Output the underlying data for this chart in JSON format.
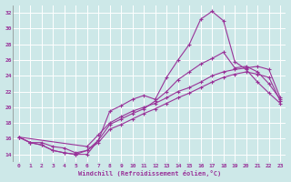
{
  "xlabel": "Windchill (Refroidissement éolien,°C)",
  "bg_color": "#cde8e8",
  "line_color": "#993399",
  "grid_color": "#b0d0d0",
  "xlim": [
    -0.5,
    23.5
  ],
  "ylim": [
    13.0,
    33.0
  ],
  "yticks": [
    14,
    16,
    18,
    20,
    22,
    24,
    26,
    28,
    30,
    32
  ],
  "xticks": [
    0,
    1,
    2,
    3,
    4,
    5,
    6,
    7,
    8,
    9,
    10,
    11,
    12,
    13,
    14,
    15,
    16,
    17,
    18,
    19,
    20,
    21,
    22,
    23
  ],
  "lines": [
    {
      "x": [
        0,
        1,
        2,
        3,
        4,
        5,
        6,
        7,
        8,
        9,
        10,
        11,
        12,
        13,
        14,
        15,
        16,
        17,
        18,
        19,
        20,
        21,
        22,
        23
      ],
      "y": [
        16.2,
        15.5,
        15.2,
        14.5,
        14.2,
        14.0,
        14.0,
        15.8,
        19.5,
        20.2,
        21.0,
        21.5,
        21.0,
        23.8,
        26.0,
        28.0,
        31.2,
        32.2,
        31.0,
        25.8,
        24.8,
        23.2,
        21.8,
        20.5
      ],
      "markers": [
        0,
        1,
        2,
        3,
        4,
        5,
        6,
        7,
        8,
        9,
        10,
        11,
        12,
        13,
        14,
        15,
        16,
        17,
        18,
        19,
        20,
        21,
        22,
        23
      ]
    },
    {
      "x": [
        0,
        1,
        2,
        3,
        4,
        5,
        6,
        7,
        8,
        9,
        10,
        11,
        12,
        13,
        14,
        15,
        16,
        17,
        18,
        19,
        20,
        21,
        22,
        23
      ],
      "y": [
        16.2,
        15.5,
        15.2,
        14.5,
        14.2,
        14.0,
        14.5,
        15.8,
        17.8,
        18.5,
        19.2,
        19.8,
        20.8,
        22.0,
        23.5,
        24.5,
        25.5,
        26.2,
        27.0,
        25.0,
        25.2,
        24.5,
        23.0,
        21.0
      ],
      "markers": [
        0,
        1,
        2,
        3,
        4,
        5,
        6,
        7,
        8,
        9,
        10,
        11,
        12,
        13,
        14,
        15,
        16,
        17,
        18,
        19,
        20,
        21,
        22,
        23
      ]
    },
    {
      "x": [
        0,
        6,
        7,
        8,
        9,
        10,
        11,
        12,
        13,
        14,
        15,
        16,
        17,
        18,
        19,
        20,
        21,
        22,
        23
      ],
      "y": [
        16.2,
        15.0,
        16.5,
        18.0,
        18.8,
        19.5,
        20.0,
        20.5,
        21.2,
        22.0,
        22.5,
        23.2,
        24.0,
        24.5,
        24.8,
        25.0,
        25.2,
        24.8,
        21.2
      ],
      "markers": [
        0,
        6,
        7,
        8,
        9,
        10,
        11,
        12,
        13,
        14,
        15,
        16,
        17,
        18,
        19,
        20,
        21,
        22,
        23
      ]
    },
    {
      "x": [
        0,
        1,
        2,
        3,
        4,
        5,
        6,
        7,
        8,
        9,
        10,
        11,
        12,
        13,
        14,
        15,
        16,
        17,
        18,
        19,
        20,
        21,
        22,
        23
      ],
      "y": [
        16.2,
        15.5,
        15.5,
        15.0,
        14.8,
        14.2,
        14.5,
        15.5,
        17.2,
        17.8,
        18.5,
        19.2,
        19.8,
        20.5,
        21.2,
        21.8,
        22.5,
        23.2,
        23.8,
        24.2,
        24.5,
        24.2,
        23.8,
        20.8
      ],
      "markers": [
        0,
        1,
        2,
        3,
        4,
        5,
        6,
        7,
        8,
        9,
        10,
        11,
        12,
        13,
        14,
        15,
        16,
        17,
        18,
        19,
        20,
        21,
        22,
        23
      ]
    }
  ]
}
